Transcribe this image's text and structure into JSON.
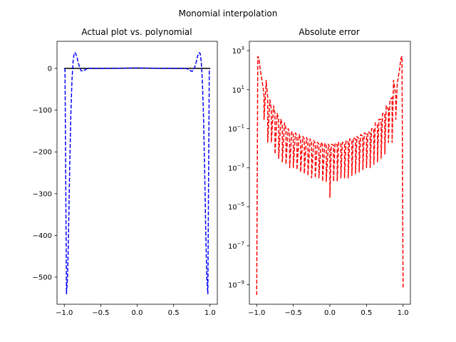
{
  "figure": {
    "suptitle": "Monomial interpolation"
  },
  "chart_data": [
    {
      "type": "line",
      "title": "Actual plot vs. polynomial",
      "xlabel": "",
      "ylabel": "",
      "xlim": [
        -1.1,
        1.1
      ],
      "ylim": [
        -565,
        65
      ],
      "x_ticks": [
        -1.0,
        -0.5,
        0.0,
        0.5,
        1.0
      ],
      "x_tick_labels": [
        "−1.0",
        "−0.5",
        "0.0",
        "0.5",
        "1.0"
      ],
      "y_ticks": [
        0,
        -100,
        -200,
        -300,
        -400,
        -500
      ],
      "y_tick_labels": [
        "0",
        "−100",
        "−200",
        "−300",
        "−400",
        "−500"
      ],
      "grid": false,
      "series": [
        {
          "style": "solid",
          "color": "#000000",
          "x": [
            -1.0,
            -0.75,
            -0.5,
            -0.25,
            0.0,
            0.25,
            0.5,
            0.75,
            1.0
          ],
          "y": [
            0.04,
            0.07,
            0.14,
            0.39,
            1.0,
            0.39,
            0.14,
            0.07,
            0.04
          ]
        },
        {
          "style": "dashed",
          "color": "#0000ff",
          "x": [
            -1.0,
            -0.99,
            -0.97,
            -0.955,
            -0.94,
            -0.925,
            -0.91,
            -0.895,
            -0.88,
            -0.865,
            -0.85,
            -0.83,
            -0.81,
            -0.79,
            -0.77,
            -0.75,
            -0.72,
            -0.69,
            -0.66,
            -0.62,
            -0.58,
            -0.5,
            -0.3,
            0.0,
            0.3,
            0.5,
            0.58,
            0.62,
            0.66,
            0.69,
            0.72,
            0.75,
            0.77,
            0.79,
            0.81,
            0.83,
            0.85,
            0.865,
            0.88,
            0.895,
            0.91,
            0.925,
            0.94,
            0.955,
            0.97,
            0.99,
            1.0
          ],
          "y": [
            0,
            -3,
            -540,
            -500,
            -380,
            -230,
            -110,
            -30,
            15,
            36,
            38,
            30,
            15,
            3,
            -5,
            -7,
            -4,
            -1,
            0.5,
            0.5,
            -0.3,
            0.2,
            0.5,
            1.0,
            0.5,
            0.2,
            -0.3,
            0.5,
            0.5,
            -1,
            -4,
            -7,
            -5,
            3,
            15,
            30,
            38,
            36,
            15,
            -30,
            -110,
            -230,
            -380,
            -500,
            -540,
            -3,
            0
          ]
        }
      ]
    },
    {
      "type": "line",
      "title": "Absolute error",
      "xlabel": "",
      "ylabel": "",
      "yscale": "log",
      "xlim": [
        -1.1,
        1.1
      ],
      "ylim": [
        1e-10,
        3000
      ],
      "x_ticks": [
        -1.0,
        -0.5,
        0.0,
        0.5,
        1.0
      ],
      "x_tick_labels": [
        "−1.0",
        "−0.5",
        "0.0",
        "0.5",
        "1.0"
      ],
      "y_ticks": [
        1000.0,
        10,
        0.1,
        0.001,
        1e-05,
        1e-07,
        1e-09
      ],
      "y_tick_labels": [
        {
          "base": "10",
          "exp": "3"
        },
        {
          "base": "10",
          "exp": "1"
        },
        {
          "base": "10",
          "exp": "−1"
        },
        {
          "base": "10",
          "exp": "−3"
        },
        {
          "base": "10",
          "exp": "−5"
        },
        {
          "base": "10",
          "exp": "−7"
        },
        {
          "base": "10",
          "exp": "−9"
        }
      ],
      "grid": false,
      "series": [
        {
          "style": "dashed",
          "color": "#ff0000",
          "x": [
            -1.0,
            -0.985,
            -0.97,
            -0.95,
            -0.92,
            -0.9,
            -0.9,
            -0.87,
            -0.85,
            -0.85,
            -0.82,
            -0.8,
            -0.8,
            -0.77,
            -0.75,
            -0.75,
            -0.72,
            -0.7,
            -0.7,
            -0.67,
            -0.65,
            -0.65,
            -0.62,
            -0.6,
            -0.6,
            -0.57,
            -0.55,
            -0.55,
            -0.52,
            -0.5,
            -0.5,
            -0.47,
            -0.45,
            -0.45,
            -0.42,
            -0.4,
            -0.4,
            -0.37,
            -0.35,
            -0.35,
            -0.32,
            -0.3,
            -0.3,
            -0.27,
            -0.25,
            -0.25,
            -0.22,
            -0.2,
            -0.2,
            -0.17,
            -0.15,
            -0.15,
            -0.12,
            -0.1,
            -0.1,
            -0.07,
            -0.05,
            -0.05,
            -0.02,
            0.0,
            0.0,
            0.02,
            0.05,
            0.05,
            0.07,
            0.1,
            0.1,
            0.12,
            0.15,
            0.15,
            0.17,
            0.2,
            0.2,
            0.22,
            0.25,
            0.25,
            0.27,
            0.3,
            0.3,
            0.32,
            0.35,
            0.35,
            0.37,
            0.4,
            0.4,
            0.42,
            0.45,
            0.45,
            0.47,
            0.5,
            0.5,
            0.52,
            0.55,
            0.55,
            0.57,
            0.6,
            0.6,
            0.62,
            0.65,
            0.65,
            0.67,
            0.7,
            0.7,
            0.72,
            0.75,
            0.75,
            0.77,
            0.8,
            0.8,
            0.82,
            0.85,
            0.85,
            0.87,
            0.9,
            0.9,
            0.92,
            0.95,
            0.97,
            0.985,
            1.0
          ],
          "y": [
            3e-10,
            500,
            400,
            100,
            20,
            5,
            0.3,
            30,
            4,
            0.02,
            3,
            1,
            0.02,
            1.5,
            0.6,
            0.005,
            0.6,
            0.3,
            0.003,
            0.3,
            0.15,
            0.002,
            0.2,
            0.1,
            0.0015,
            0.1,
            0.06,
            0.001,
            0.07,
            0.05,
            0.001,
            0.06,
            0.04,
            0.0008,
            0.05,
            0.03,
            0.0006,
            0.04,
            0.03,
            0.0005,
            0.035,
            0.025,
            0.0004,
            0.03,
            0.02,
            0.0003,
            0.025,
            0.018,
            0.0003,
            0.02,
            0.016,
            0.0003,
            0.02,
            0.015,
            0.0002,
            0.018,
            0.014,
            0.0002,
            0.016,
            0.01,
            3e-05,
            0.016,
            0.014,
            0.0002,
            0.018,
            0.015,
            0.0002,
            0.02,
            0.016,
            0.0003,
            0.02,
            0.018,
            0.0003,
            0.025,
            0.02,
            0.0003,
            0.03,
            0.025,
            0.0004,
            0.035,
            0.03,
            0.0005,
            0.04,
            0.03,
            0.0006,
            0.05,
            0.04,
            0.0008,
            0.06,
            0.05,
            0.001,
            0.07,
            0.06,
            0.001,
            0.1,
            0.1,
            0.0015,
            0.2,
            0.15,
            0.002,
            0.3,
            0.3,
            0.003,
            0.6,
            0.6,
            0.005,
            1.5,
            1,
            0.02,
            3,
            4,
            0.02,
            30,
            5,
            0.3,
            20,
            100,
            400,
            500,
            6e-10
          ]
        }
      ]
    }
  ]
}
